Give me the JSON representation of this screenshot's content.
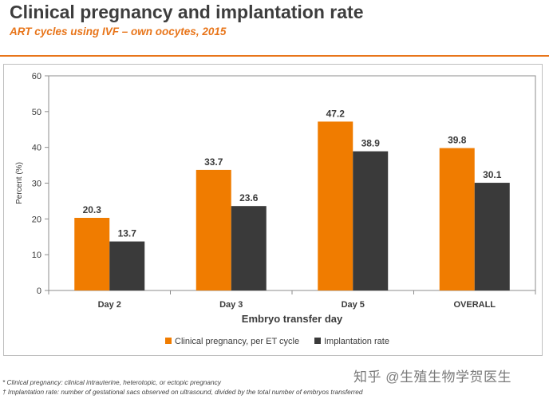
{
  "header": {
    "title": "Clinical pregnancy and implantation rate",
    "subtitle": "ART cycles using IVF – own oocytes, 2015"
  },
  "chart_data": {
    "type": "bar",
    "categories": [
      "Day 2",
      "Day 3",
      "Day 5",
      "OVERALL"
    ],
    "series": [
      {
        "name": "Clinical pregnancy, per ET cycle",
        "values": [
          20.3,
          33.7,
          47.2,
          39.8
        ],
        "color": "#f07c00"
      },
      {
        "name": "Implantation rate",
        "values": [
          13.7,
          23.6,
          38.9,
          30.1
        ],
        "color": "#3a3a3a"
      }
    ],
    "xlabel": "Embryo transfer day",
    "ylabel": "Percent (%)",
    "ylim": [
      0,
      60
    ],
    "yticks": [
      0,
      10,
      20,
      30,
      40,
      50,
      60
    ],
    "grid": false,
    "legend_position": "bottom"
  },
  "footnotes": [
    "* Clinical pregnancy: clinical intrauterine, heterotopic, or ectopic pregnancy",
    "† Implantation rate: number of gestational sacs observed on ultrasound, divided by the total number of embryos transferred"
  ],
  "watermark": "知乎 @生殖生物学贺医生"
}
